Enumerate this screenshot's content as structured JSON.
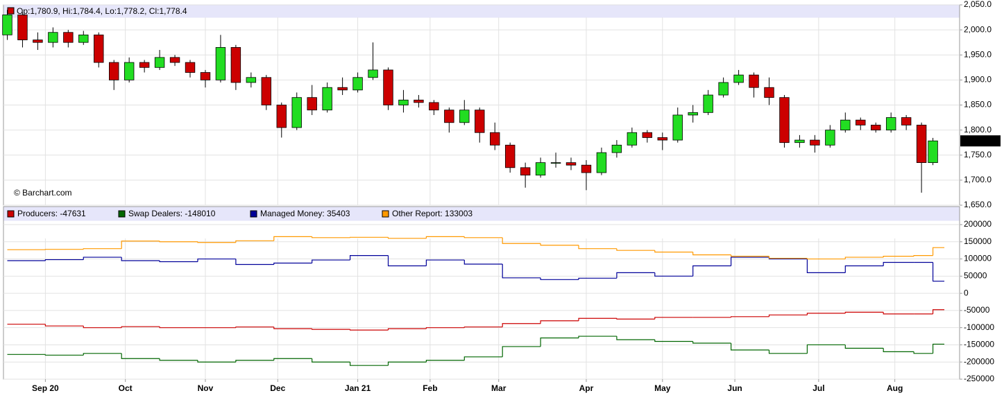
{
  "chart_data": [
    {
      "type": "candlestick",
      "header": "Op:1,780.9, Hi:1,784.4, Lo:1,778.2, Cl:1,778.4",
      "watermark": "© Barchart.com",
      "up_color": "#22dd22",
      "down_color": "#cc0000",
      "xlim": [
        -1,
        250
      ],
      "ylim": [
        1650,
        2050
      ],
      "yticks": [
        {
          "value": 1650,
          "label": "1,650.0"
        },
        {
          "value": 1700,
          "label": "1,700.0"
        },
        {
          "value": 1750,
          "label": "1,750.0"
        },
        {
          "value": 1800,
          "label": "1,800.0"
        },
        {
          "value": 1850,
          "label": "1,850.0"
        },
        {
          "value": 1900,
          "label": "1,900.0"
        },
        {
          "value": 1950,
          "label": "1,950.0"
        },
        {
          "value": 2000,
          "label": "2,000.0"
        },
        {
          "value": 2050,
          "label": "2,050.0"
        }
      ],
      "last_price": {
        "value": 1778.4,
        "label": "1,778.4"
      },
      "x": [
        0,
        4,
        8,
        12,
        16,
        20,
        24,
        28,
        32,
        36,
        40,
        44,
        48,
        52,
        56,
        60,
        64,
        68,
        72,
        76,
        80,
        84,
        88,
        92,
        96,
        100,
        104,
        108,
        112,
        116,
        120,
        124,
        128,
        132,
        136,
        140,
        144,
        148,
        152,
        156,
        160,
        164,
        168,
        172,
        176,
        180,
        184,
        188,
        192,
        196,
        200,
        204,
        208,
        212,
        216,
        220,
        224,
        228,
        232,
        236,
        240,
        243
      ],
      "open": [
        1990,
        2030,
        1980,
        1975,
        1995,
        1975,
        1990,
        1935,
        1900,
        1935,
        1925,
        1945,
        1935,
        1915,
        1900,
        1965,
        1895,
        1905,
        1850,
        1805,
        1865,
        1840,
        1885,
        1880,
        1905,
        1920,
        1850,
        1860,
        1855,
        1840,
        1815,
        1840,
        1795,
        1770,
        1725,
        1710,
        1735,
        1735,
        1730,
        1715,
        1755,
        1770,
        1795,
        1785,
        1780,
        1830,
        1835,
        1870,
        1895,
        1910,
        1885,
        1865,
        1775,
        1780,
        1770,
        1800,
        1820,
        1810,
        1800,
        1825,
        1810,
        1735
      ],
      "high": [
        2040,
        2035,
        1995,
        2005,
        2000,
        1998,
        1995,
        1940,
        1945,
        1940,
        1960,
        1950,
        1940,
        1920,
        1990,
        1970,
        1915,
        1910,
        1855,
        1875,
        1890,
        1895,
        1905,
        1915,
        1975,
        1925,
        1880,
        1870,
        1860,
        1845,
        1860,
        1845,
        1815,
        1775,
        1735,
        1745,
        1755,
        1745,
        1740,
        1765,
        1780,
        1805,
        1800,
        1795,
        1845,
        1850,
        1880,
        1905,
        1920,
        1915,
        1905,
        1870,
        1790,
        1790,
        1810,
        1835,
        1825,
        1815,
        1835,
        1830,
        1815,
        1784.4
      ],
      "low": [
        1980,
        1965,
        1960,
        1965,
        1965,
        1970,
        1925,
        1880,
        1895,
        1915,
        1920,
        1928,
        1905,
        1885,
        1895,
        1880,
        1885,
        1840,
        1785,
        1800,
        1830,
        1835,
        1870,
        1875,
        1900,
        1840,
        1835,
        1845,
        1830,
        1795,
        1810,
        1775,
        1760,
        1715,
        1685,
        1705,
        1725,
        1720,
        1680,
        1710,
        1745,
        1765,
        1775,
        1760,
        1775,
        1815,
        1830,
        1865,
        1890,
        1865,
        1850,
        1765,
        1765,
        1755,
        1765,
        1795,
        1800,
        1795,
        1795,
        1800,
        1675,
        1730
      ],
      "close": [
        2030,
        1980,
        1975,
        1995,
        1975,
        1990,
        1935,
        1900,
        1935,
        1925,
        1945,
        1935,
        1915,
        1900,
        1965,
        1895,
        1905,
        1850,
        1805,
        1865,
        1840,
        1885,
        1880,
        1905,
        1920,
        1850,
        1860,
        1855,
        1840,
        1815,
        1840,
        1795,
        1770,
        1725,
        1710,
        1735,
        1735,
        1730,
        1715,
        1755,
        1770,
        1795,
        1785,
        1780,
        1830,
        1835,
        1870,
        1895,
        1910,
        1885,
        1865,
        1775,
        1780,
        1770,
        1800,
        1820,
        1810,
        1800,
        1825,
        1810,
        1735,
        1778.4
      ]
    },
    {
      "type": "step",
      "xlim": [
        -1,
        250
      ],
      "ylim": [
        -250000,
        200000
      ],
      "yticks": [
        -250000,
        -200000,
        -150000,
        -100000,
        -50000,
        0,
        50000,
        100000,
        150000,
        200000
      ],
      "xticks": [
        {
          "value": 10,
          "label": "Sep 20"
        },
        {
          "value": 31,
          "label": "Oct"
        },
        {
          "value": 52,
          "label": "Nov"
        },
        {
          "value": 71,
          "label": "Dec"
        },
        {
          "value": 92,
          "label": "Jan 21"
        },
        {
          "value": 111,
          "label": "Feb"
        },
        {
          "value": 129,
          "label": "Mar"
        },
        {
          "value": 152,
          "label": "Apr"
        },
        {
          "value": 172,
          "label": "May"
        },
        {
          "value": 191,
          "label": "Jun"
        },
        {
          "value": 213,
          "label": "Jul"
        },
        {
          "value": 233,
          "label": "Aug"
        }
      ],
      "x": [
        0,
        10,
        20,
        30,
        40,
        50,
        60,
        70,
        80,
        90,
        100,
        110,
        120,
        130,
        140,
        150,
        160,
        170,
        180,
        190,
        200,
        210,
        220,
        230,
        238,
        243
      ],
      "series": [
        {
          "name": "Producers: -47631",
          "color": "#cc0000",
          "values": [
            -90000,
            -95000,
            -100000,
            -97000,
            -100000,
            -100000,
            -98000,
            -103000,
            -105000,
            -107000,
            -103000,
            -100000,
            -98000,
            -88000,
            -80000,
            -73000,
            -75000,
            -70000,
            -70000,
            -68000,
            -63000,
            -58000,
            -55000,
            -60000,
            -60000,
            -47631
          ]
        },
        {
          "name": "Swap Dealers: -148010",
          "color": "#006600",
          "values": [
            -178000,
            -180000,
            -175000,
            -190000,
            -195000,
            -200000,
            -195000,
            -190000,
            -200000,
            -210000,
            -200000,
            -195000,
            -185000,
            -155000,
            -130000,
            -125000,
            -135000,
            -140000,
            -145000,
            -165000,
            -175000,
            -150000,
            -160000,
            -170000,
            -175000,
            -148010
          ]
        },
        {
          "name": "Managed Money: 35403",
          "color": "#000099",
          "values": [
            95000,
            98000,
            105000,
            95000,
            92000,
            100000,
            84000,
            88000,
            97000,
            110000,
            80000,
            97000,
            85000,
            45000,
            40000,
            44000,
            60000,
            50000,
            80000,
            105000,
            100000,
            60000,
            80000,
            90000,
            90000,
            35403
          ]
        },
        {
          "name": "Other Report: 133003",
          "color": "#ff9900",
          "values": [
            127000,
            128000,
            130000,
            152000,
            150000,
            148000,
            153000,
            165000,
            162000,
            163000,
            160000,
            165000,
            162000,
            145000,
            140000,
            130000,
            125000,
            120000,
            112000,
            108000,
            102000,
            100000,
            105000,
            108000,
            110000,
            133003
          ]
        }
      ]
    }
  ]
}
